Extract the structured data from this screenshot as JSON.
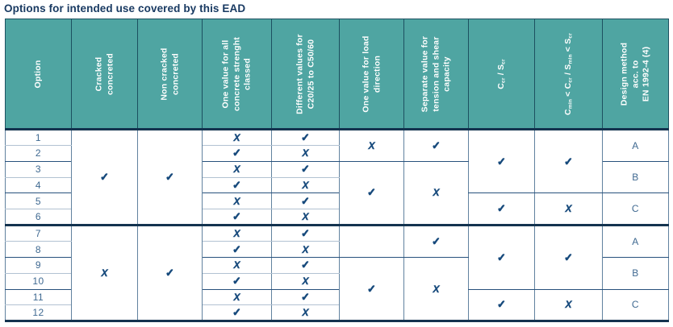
{
  "title": "Options for intended use covered by this EAD",
  "colors": {
    "header_bg": "#4fa5a2",
    "header_text": "#ffffff",
    "header_border": "#1c5060",
    "mark_navy": "#174a7c",
    "number_navy": "#3f6991",
    "title_navy": "#193a62",
    "light_rule": "#b2c2d2",
    "pair_rule": "#27517c",
    "thick_rule": "#14334f",
    "vertical_rule": "#61829f"
  },
  "table": {
    "marks": {
      "check": "✓",
      "cross": "X"
    },
    "columns": [
      {
        "name": "option",
        "lines": [
          "Option"
        ]
      },
      {
        "name": "cracked-concreted",
        "lines": [
          "Cracked",
          "concreted"
        ]
      },
      {
        "name": "non-cracked-concreted",
        "lines": [
          "Non cracked",
          "concreted"
        ]
      },
      {
        "name": "one-value-all-concrete-strength",
        "lines": [
          "One value for all",
          "concrete strenght",
          "classed"
        ]
      },
      {
        "name": "different-values-c20-25-to-c50-60",
        "lines": [
          "Different values for",
          "C20/25 to C50/60"
        ]
      },
      {
        "name": "one-value-load-direction",
        "lines": [
          "One value for load",
          "direction"
        ]
      },
      {
        "name": "separate-value-tension-shear",
        "lines": [
          "Separate value for",
          "tension and shear",
          "capacity"
        ]
      },
      {
        "name": "ccr-scr",
        "rich": [
          {
            "t": "C"
          },
          {
            "s": "cr"
          },
          {
            "t": " / S"
          },
          {
            "s": "cr"
          }
        ]
      },
      {
        "name": "cmin-ccr-smin-scr",
        "rich": [
          {
            "t": "C"
          },
          {
            "s": "min"
          },
          {
            "t": " < C"
          },
          {
            "s": "cr"
          },
          {
            "t": " / S"
          },
          {
            "s": "min"
          },
          {
            "t": " < S"
          },
          {
            "s": "cr"
          }
        ]
      },
      {
        "name": "design-method-en-1992-4",
        "lines": [
          "Design method",
          "acc. to",
          "EN 1992-4 (4)"
        ]
      }
    ],
    "rows": [
      {
        "option": "1",
        "cells": [
          {
            "mark": "check",
            "span": 6
          },
          {
            "mark": "check",
            "span": 6
          },
          {
            "mark": "cross"
          },
          {
            "mark": "check"
          },
          {
            "mark": "cross",
            "span": 2
          },
          {
            "mark": "check",
            "span": 2
          },
          {
            "mark": "check",
            "span": 4
          },
          {
            "mark": "check",
            "span": 4
          },
          {
            "text": "A",
            "span": 2
          }
        ]
      },
      {
        "option": "2",
        "cells": [
          {
            "mark": "check"
          },
          {
            "mark": "cross"
          }
        ]
      },
      {
        "option": "3",
        "cells": [
          {
            "mark": "cross"
          },
          {
            "mark": "check"
          },
          {
            "mark": "check",
            "span": 4
          },
          {
            "mark": "cross",
            "span": 4
          },
          {
            "text": "B",
            "span": 2
          }
        ]
      },
      {
        "option": "4",
        "cells": [
          {
            "mark": "check"
          },
          {
            "mark": "cross"
          }
        ]
      },
      {
        "option": "5",
        "cells": [
          {
            "mark": "cross"
          },
          {
            "mark": "check"
          },
          {
            "mark": "check",
            "span": 2
          },
          {
            "mark": "cross",
            "span": 2
          },
          {
            "text": "C",
            "span": 2
          }
        ]
      },
      {
        "option": "6",
        "cells": [
          {
            "mark": "check"
          },
          {
            "mark": "cross"
          }
        ]
      },
      {
        "option": "7",
        "cells": [
          {
            "mark": "cross",
            "span": 6
          },
          {
            "mark": "check",
            "span": 6
          },
          {
            "mark": "cross"
          },
          {
            "mark": "check"
          },
          {
            "mark": "blank",
            "span": 2
          },
          {
            "mark": "check",
            "span": 2
          },
          {
            "mark": "check",
            "span": 4
          },
          {
            "mark": "check",
            "span": 4
          },
          {
            "text": "A",
            "span": 2
          }
        ]
      },
      {
        "option": "8",
        "cells": [
          {
            "mark": "check"
          },
          {
            "mark": "cross"
          }
        ]
      },
      {
        "option": "9",
        "cells": [
          {
            "mark": "cross"
          },
          {
            "mark": "check"
          },
          {
            "mark": "check",
            "span": 4
          },
          {
            "mark": "cross",
            "span": 4
          },
          {
            "text": "B",
            "span": 2
          }
        ]
      },
      {
        "option": "10",
        "cells": [
          {
            "mark": "check"
          },
          {
            "mark": "cross"
          }
        ]
      },
      {
        "option": "11",
        "cells": [
          {
            "mark": "cross"
          },
          {
            "mark": "check"
          },
          {
            "mark": "check",
            "span": 2
          },
          {
            "mark": "cross",
            "span": 2
          },
          {
            "text": "C",
            "span": 2
          }
        ]
      },
      {
        "option": "12",
        "cells": [
          {
            "mark": "check"
          },
          {
            "mark": "cross"
          }
        ]
      }
    ]
  }
}
